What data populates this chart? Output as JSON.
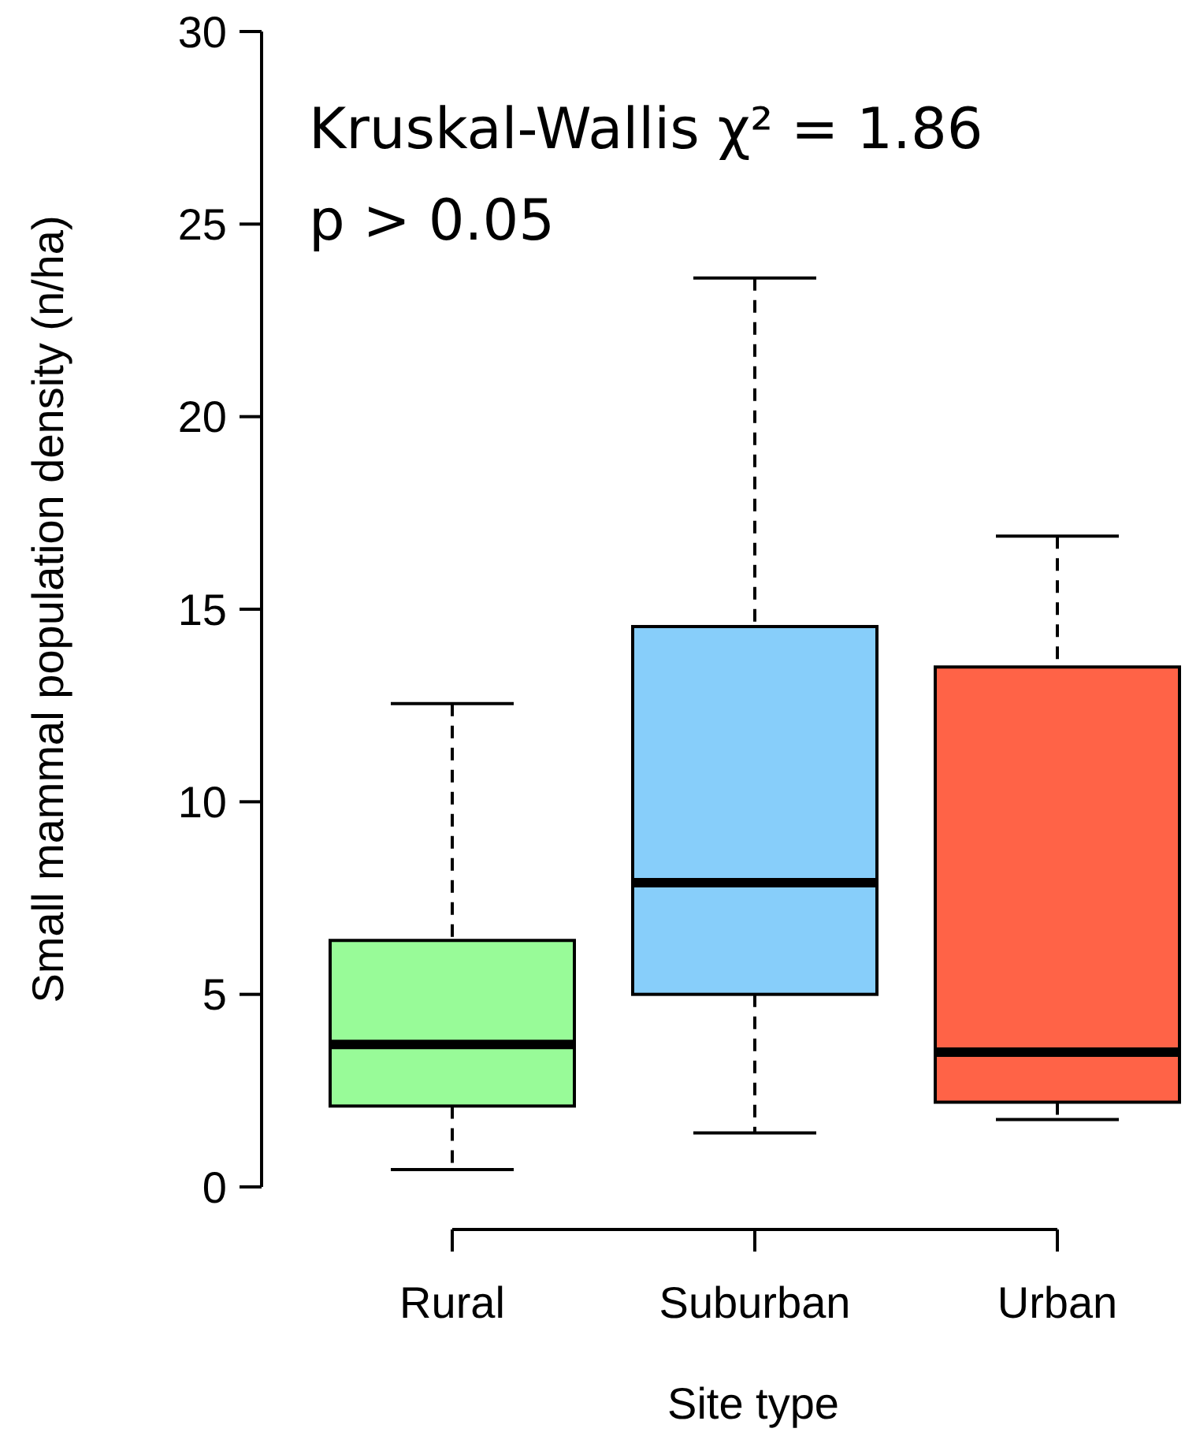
{
  "chart_data": {
    "type": "box",
    "xlabel": "Site type",
    "ylabel": "Small mammal population density (n/ha)",
    "categories": [
      "Rural",
      "Suburban",
      "Urban"
    ],
    "colors": [
      "#98fb98",
      "#87cefa",
      "#ff6347"
    ],
    "boxes": [
      {
        "low": 0.45,
        "q1": 2.1,
        "median": 3.7,
        "q3": 6.4,
        "high": 12.55
      },
      {
        "low": 1.4,
        "q1": 5.0,
        "median": 7.9,
        "q3": 14.55,
        "high": 23.6
      },
      {
        "low": 1.75,
        "q1": 2.2,
        "median": 3.5,
        "q3": 13.5,
        "high": 16.9
      }
    ],
    "ylim": [
      0,
      30
    ],
    "yticks": [
      0,
      5,
      10,
      15,
      20,
      25,
      30
    ],
    "annotations": [
      "Kruskal-Wallis χ² = 1.86",
      "p > 0.05"
    ]
  }
}
